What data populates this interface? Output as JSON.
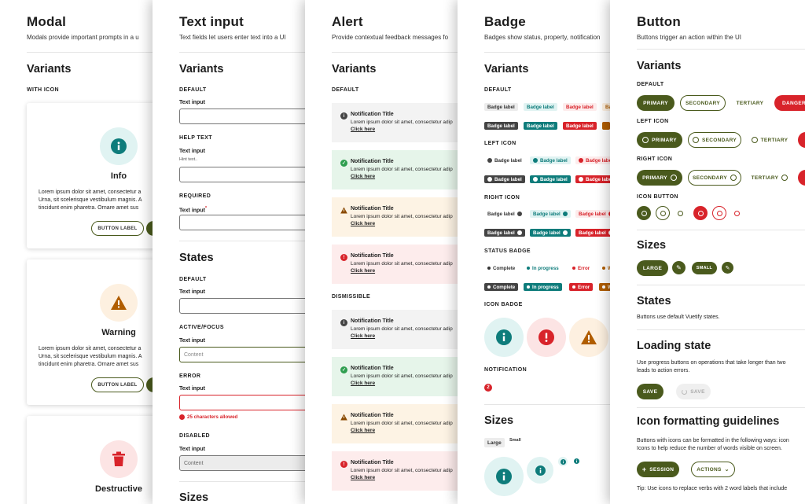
{
  "colors": {
    "primary": "#4a5a1d",
    "danger": "#d8232a",
    "info": "#0e7c7b",
    "success": "#2e9e4f",
    "warning": "#b05d00"
  },
  "modal": {
    "title": "Modal",
    "subtitle": "Modals provide important prompts in a u",
    "variants": "Variants",
    "with_icon": "WITH ICON",
    "cards": [
      {
        "title": "Info",
        "icon": "info-icon",
        "body": [
          "Lorem ipsum dolor sit amet, consectetur a",
          "Urna, sit scelerisque vestibulum magnis. A",
          "tincidunt enim pharetra. Ornare amet sus"
        ],
        "button": "BUTTON LABEL"
      },
      {
        "title": "Warning",
        "icon": "warning-icon",
        "body": [
          "Lorem ipsum dolor sit amet, consectetur a",
          "Urna, sit scelerisque vestibulum magnis. A",
          "tincidunt enim pharetra. Ornare amet sus"
        ],
        "button": "BUTTON LABEL"
      },
      {
        "title": "Destructive",
        "icon": "trash-icon"
      }
    ]
  },
  "text_input": {
    "title": "Text input",
    "subtitle": "Text fields let users enter text into a UI",
    "variants": "Variants",
    "default": "DEFAULT",
    "help_text": "HELP TEXT",
    "required": "REQUIRED",
    "field_label": "Text input",
    "hint": "Hint text..",
    "required_mark": "*",
    "states": "States",
    "s_default": "DEFAULT",
    "s_focus": "ACTIVE/FOCUS",
    "s_error": "ERROR",
    "s_disabled": "DISABLED",
    "content": "Content",
    "error_msg": "25 characters allowed",
    "sizes": "Sizes"
  },
  "alert": {
    "title": "Alert",
    "subtitle": "Provide contextual feedback messages fo",
    "variants": "Variants",
    "default": "DEFAULT",
    "dismissible": "DISMISSIBLE",
    "notif_title": "Notification Title",
    "notif_body": "Lorem ipsum dolor sit amet, consectetur adip",
    "notif_link": "Click here"
  },
  "badge": {
    "title": "Badge",
    "subtitle": "Badges show status, property, notification",
    "variants": "Variants",
    "default": "DEFAULT",
    "left_icon": "LEFT ICON",
    "right_icon": "RIGHT ICON",
    "status_badge": "STATUS BADGE",
    "icon_badge": "ICON BADGE",
    "notification": "NOTIFICATION",
    "label": "Badge label",
    "status": [
      "Complete",
      "In progress",
      "Error",
      "W"
    ],
    "notif_count": "2",
    "sizes": "Sizes",
    "large": "Large",
    "small": "Small"
  },
  "button": {
    "title": "Button",
    "subtitle": "Buttons trigger an action within the UI",
    "variants": "Variants",
    "default": "DEFAULT",
    "left_icon": "LEFT ICON",
    "right_icon": "RIGHT ICON",
    "icon_button": "ICON BUTTON",
    "primary": "PRIMARY",
    "secondary": "SECONDARY",
    "tertiary": "TERTIARY",
    "danger": "DANGER",
    "sizes": "Sizes",
    "large": "LARGE",
    "small": "SMALL",
    "states": "States",
    "states_body": "Buttons use default Vuetify states.",
    "loading": "Loading state",
    "loading_body1": "Use progress buttons on operations that take longer than two",
    "loading_body2": "leads to action errors.",
    "save": "SAVE",
    "icon_fmt": "Icon formatting guidelines",
    "icon_fmt_body1": "Buttons with icons can be formatted in the following ways: icon",
    "icon_fmt_body2": "Icons to help reduce the number of words visible on screen.",
    "session": "SESSION",
    "actions": "ACTIONS",
    "tip": "Tip: Use icons to replace verbs with 2 word labels that include"
  }
}
